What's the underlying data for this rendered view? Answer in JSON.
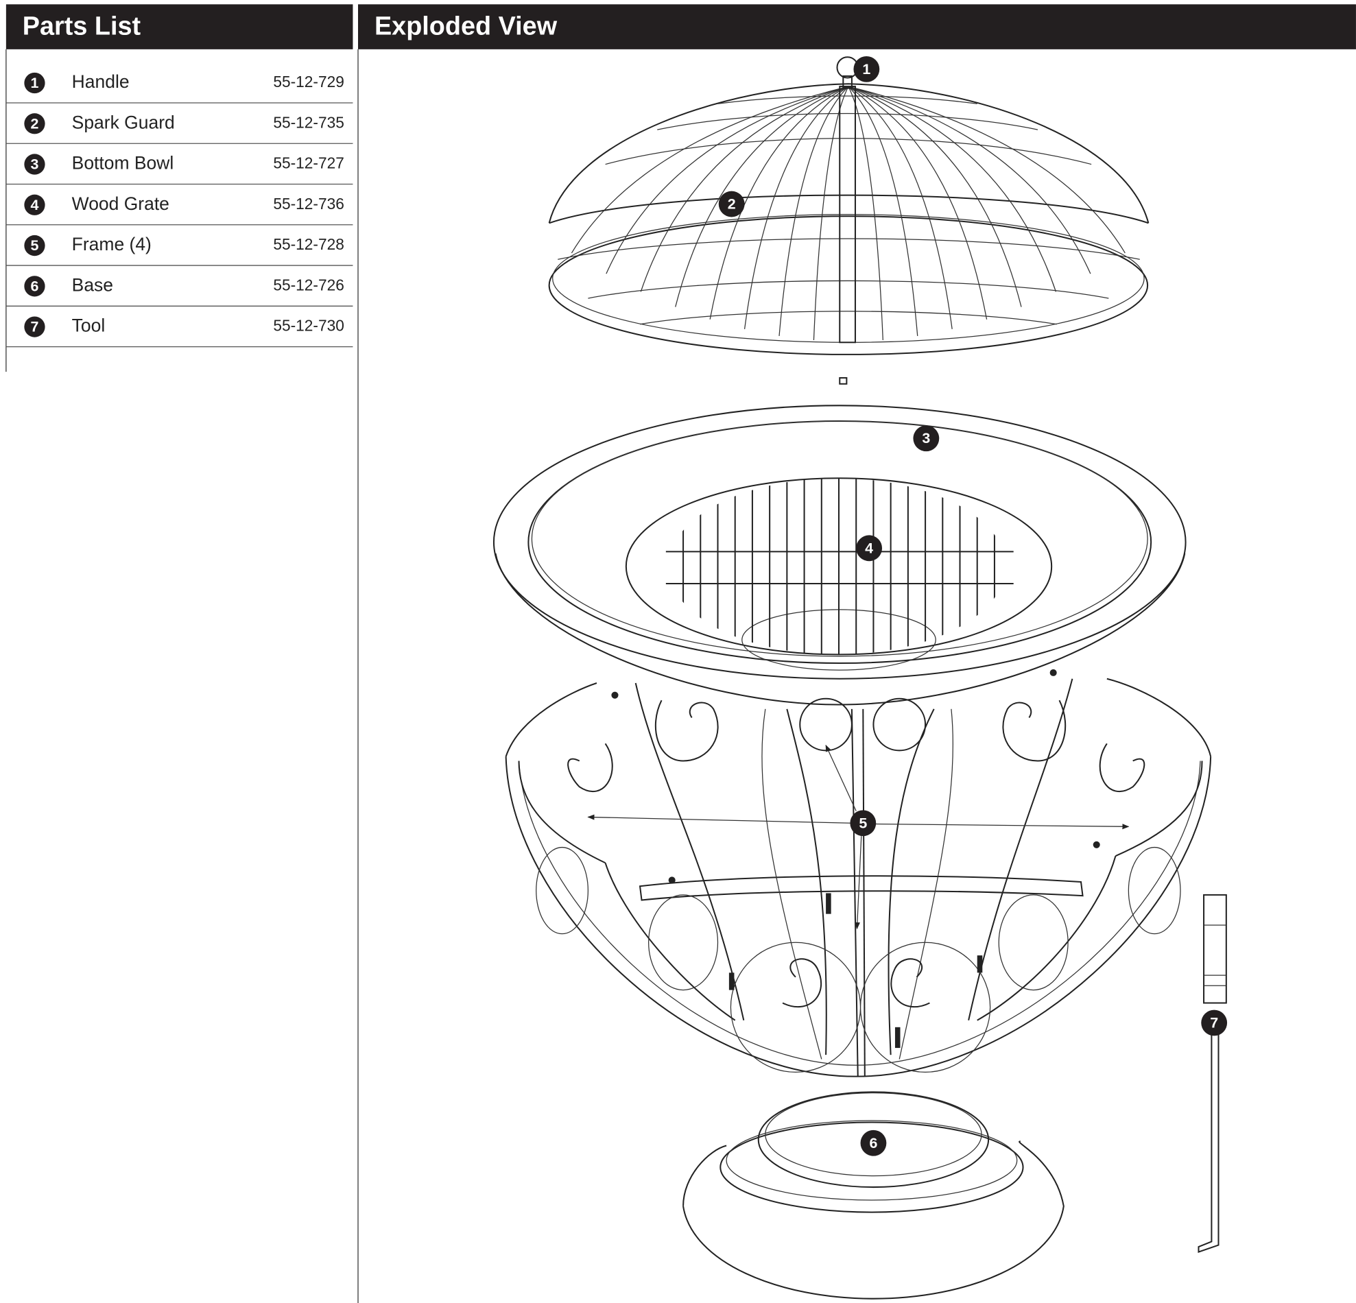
{
  "parts_list": {
    "title": "Parts List",
    "items": [
      {
        "number": "1",
        "name": "Handle",
        "part_no": "55-12-729"
      },
      {
        "number": "2",
        "name": "Spark Guard",
        "part_no": "55-12-735"
      },
      {
        "number": "3",
        "name": "Bottom Bowl",
        "part_no": "55-12-727"
      },
      {
        "number": "4",
        "name": "Wood Grate",
        "part_no": "55-12-736"
      },
      {
        "number": "5",
        "name": "Frame (4)",
        "part_no": "55-12-728"
      },
      {
        "number": "6",
        "name": "Base",
        "part_no": "55-12-726"
      },
      {
        "number": "7",
        "name": "Tool",
        "part_no": "55-12-730"
      }
    ]
  },
  "exploded_view": {
    "title": "Exploded View",
    "callouts": [
      "1",
      "2",
      "3",
      "4",
      "5",
      "6",
      "7"
    ]
  }
}
